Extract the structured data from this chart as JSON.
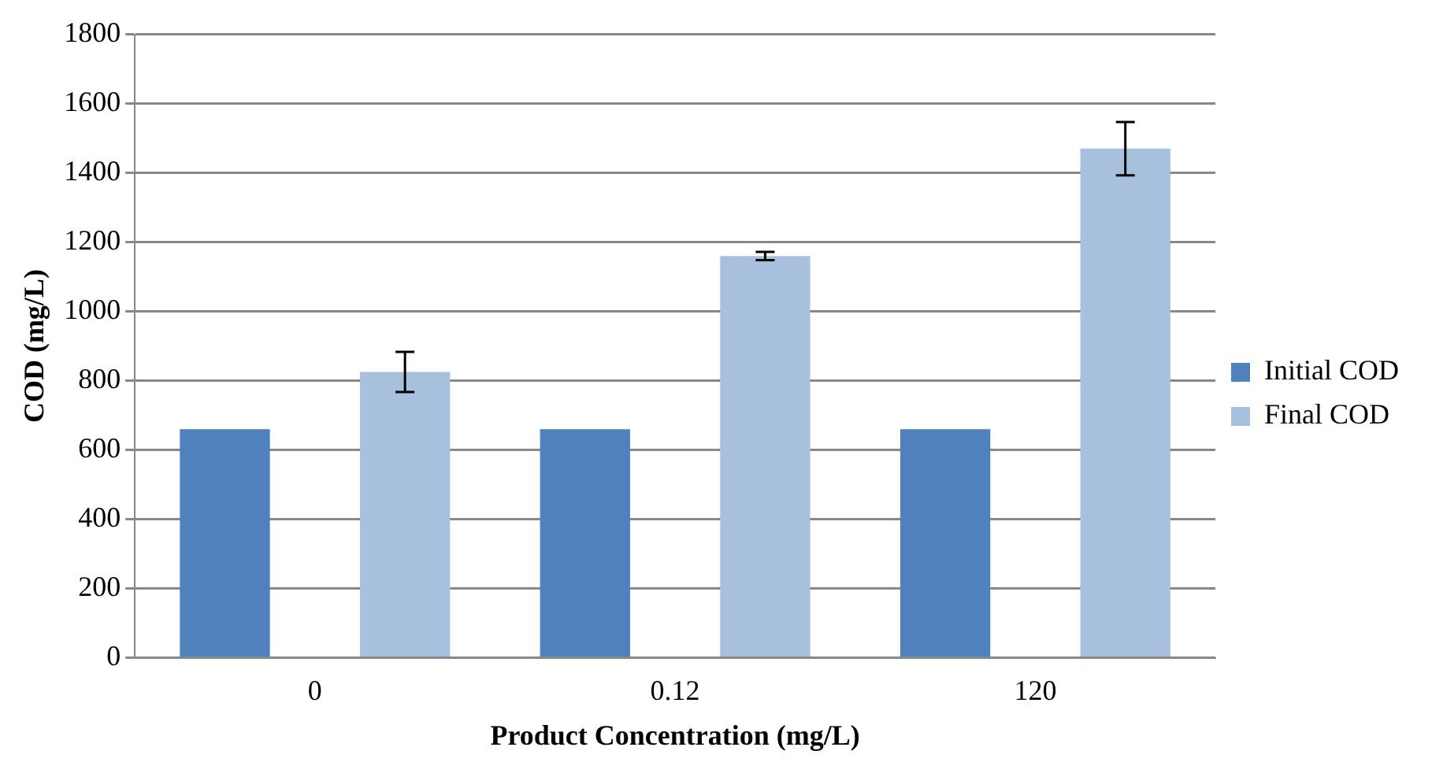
{
  "chart_data": {
    "type": "bar",
    "xlabel": "Product Concentration (mg/L)",
    "ylabel": "COD (mg/L)",
    "categories": [
      "0",
      "0.12",
      "120"
    ],
    "series": [
      {
        "name": "Initial COD",
        "color": "#4f81bd",
        "values": [
          660,
          660,
          660
        ]
      },
      {
        "name": "Final COD",
        "color": "#a7c0de",
        "values": [
          825,
          1160,
          1470
        ],
        "errors": [
          58,
          12,
          77
        ]
      }
    ],
    "ylim": [
      0,
      1800
    ],
    "yticks": [
      0,
      200,
      400,
      600,
      800,
      1000,
      1200,
      1400,
      1600,
      1800
    ],
    "grid": "y",
    "legend": "right"
  }
}
